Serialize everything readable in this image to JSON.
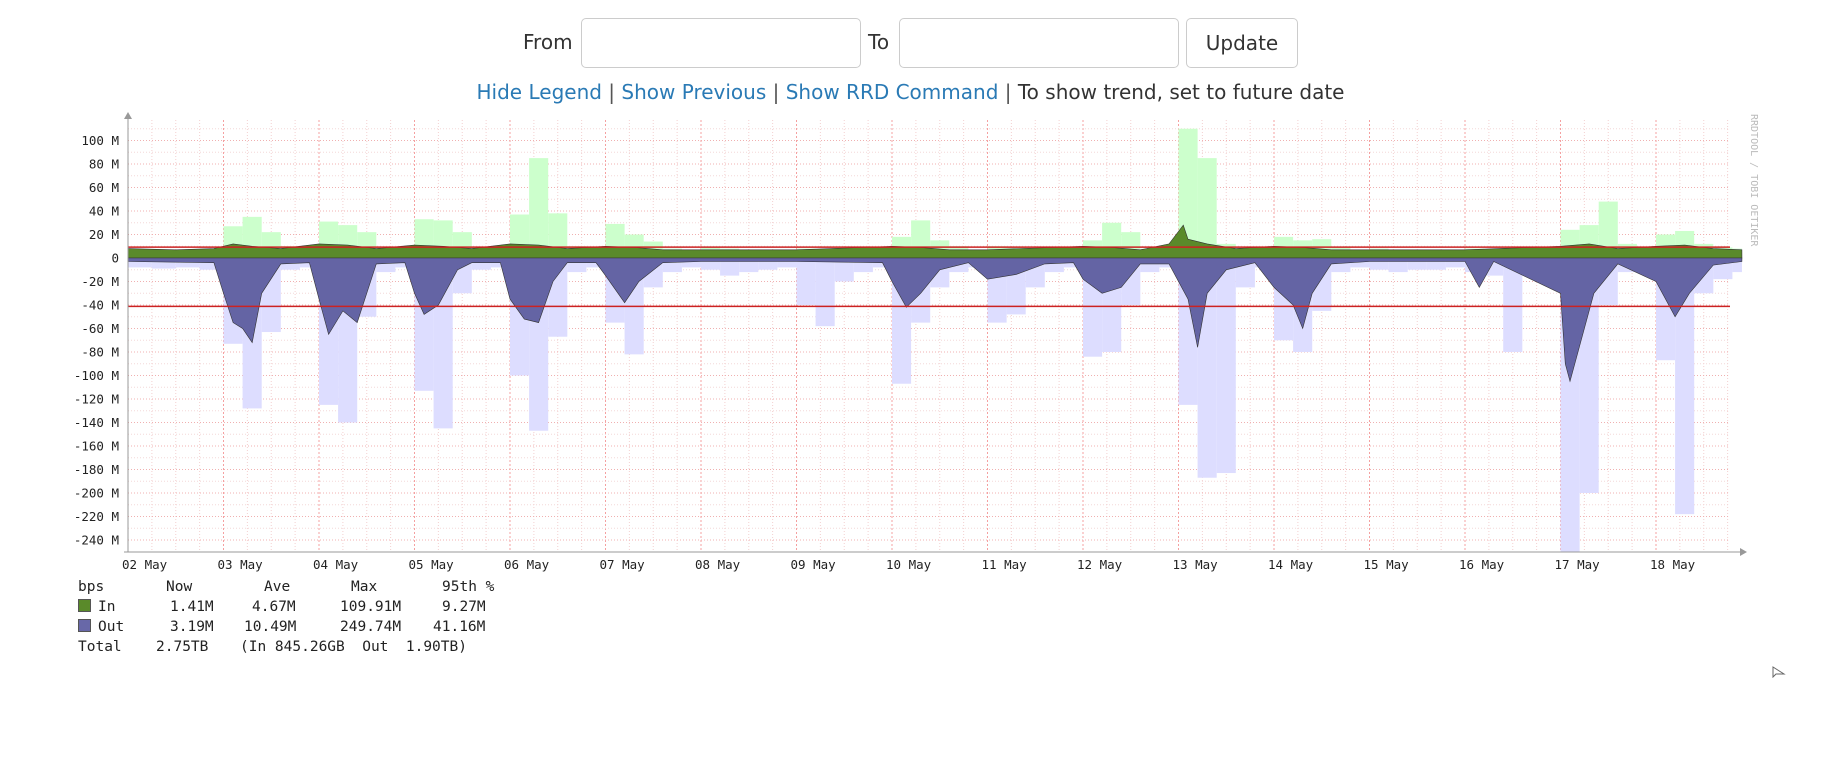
{
  "form": {
    "from_label": "From",
    "from_value": "",
    "to_label": "To",
    "to_value": "",
    "update_label": "Update"
  },
  "links": {
    "hide_legend": "Hide Legend",
    "show_previous": "Show Previous",
    "show_rrd": "Show RRD Command",
    "trend_note": "To show trend, set to future date",
    "separator": "|"
  },
  "watermark": "RRDTOOL / TOBI OETIKER",
  "legend": {
    "unit": "bps",
    "headers": [
      "Now",
      "Ave",
      "Max",
      "95th %"
    ],
    "rows": [
      {
        "name": "In",
        "color": "#5a8a2a",
        "now": "1.41M",
        "ave": "4.67M",
        "max": "109.91M",
        "p95": "9.27M"
      },
      {
        "name": "Out",
        "color": "#6868a8",
        "now": "3.19M",
        "ave": "10.49M",
        "max": "249.74M",
        "p95": "41.16M"
      }
    ],
    "total": {
      "label": "Total",
      "value": "2.75TB",
      "detail": "(In 845.26GB  Out  1.90TB)"
    }
  },
  "colors": {
    "in_fill": "#5a8a2a",
    "in_max_fill": "#ccffcc",
    "out_fill": "#6464a4",
    "out_max_fill": "#ddddff",
    "p95_line": "#cc2222",
    "link": "#2a7ab5"
  },
  "chart_data": {
    "type": "area",
    "unit": "bps",
    "y_tick_labels": [
      "100 M",
      "80 M",
      "60 M",
      "40 M",
      "20 M",
      "0",
      "-20 M",
      "-40 M",
      "-60 M",
      "-80 M",
      "-100 M",
      "-120 M",
      "-140 M",
      "-160 M",
      "-180 M",
      "-200 M",
      "-220 M",
      "-240 M"
    ],
    "y_ticks": [
      100,
      80,
      60,
      40,
      20,
      0,
      -20,
      -40,
      -60,
      -80,
      -100,
      -120,
      -140,
      -160,
      -180,
      -200,
      -220,
      -240
    ],
    "x_tick_labels": [
      "02 May",
      "03 May",
      "04 May",
      "05 May",
      "06 May",
      "07 May",
      "08 May",
      "09 May",
      "10 May",
      "11 May",
      "12 May",
      "13 May",
      "14 May",
      "15 May",
      "16 May",
      "17 May",
      "18 May"
    ],
    "x_range_days": [
      0,
      16.9
    ],
    "y_range": [
      -250,
      110
    ],
    "in_95th": 9.27,
    "out_95th": -41.16,
    "series": [
      {
        "name": "In",
        "kind": "max_bars",
        "points": [
          [
            0.0,
            6
          ],
          [
            0.25,
            7
          ],
          [
            0.5,
            6
          ],
          [
            0.75,
            8
          ],
          [
            1.0,
            27
          ],
          [
            1.2,
            35
          ],
          [
            1.4,
            22
          ],
          [
            1.6,
            10
          ],
          [
            1.8,
            6
          ],
          [
            2.0,
            31
          ],
          [
            2.2,
            28
          ],
          [
            2.4,
            22
          ],
          [
            2.6,
            9
          ],
          [
            2.8,
            6
          ],
          [
            3.0,
            33
          ],
          [
            3.2,
            32
          ],
          [
            3.4,
            22
          ],
          [
            3.6,
            9
          ],
          [
            3.8,
            6
          ],
          [
            4.0,
            37
          ],
          [
            4.2,
            85
          ],
          [
            4.4,
            38
          ],
          [
            4.6,
            10
          ],
          [
            4.8,
            6
          ],
          [
            5.0,
            29
          ],
          [
            5.2,
            20
          ],
          [
            5.4,
            14
          ],
          [
            5.6,
            8
          ],
          [
            5.8,
            6
          ],
          [
            6.0,
            9
          ],
          [
            6.2,
            8
          ],
          [
            6.4,
            7
          ],
          [
            6.6,
            7
          ],
          [
            6.8,
            6
          ],
          [
            7.0,
            8
          ],
          [
            7.2,
            7
          ],
          [
            7.4,
            7
          ],
          [
            7.6,
            7
          ],
          [
            7.8,
            6
          ],
          [
            8.0,
            18
          ],
          [
            8.2,
            32
          ],
          [
            8.4,
            15
          ],
          [
            8.6,
            10
          ],
          [
            8.8,
            6
          ],
          [
            9.0,
            10
          ],
          [
            9.2,
            9
          ],
          [
            9.4,
            8
          ],
          [
            9.6,
            7
          ],
          [
            9.8,
            6
          ],
          [
            10.0,
            15
          ],
          [
            10.2,
            30
          ],
          [
            10.4,
            22
          ],
          [
            10.6,
            8
          ],
          [
            10.8,
            6
          ],
          [
            11.0,
            110
          ],
          [
            11.2,
            85
          ],
          [
            11.4,
            12
          ],
          [
            11.6,
            8
          ],
          [
            11.8,
            6
          ],
          [
            12.0,
            18
          ],
          [
            12.2,
            15
          ],
          [
            12.4,
            16
          ],
          [
            12.6,
            9
          ],
          [
            12.8,
            6
          ],
          [
            13.0,
            8
          ],
          [
            13.2,
            7
          ],
          [
            13.4,
            7
          ],
          [
            13.6,
            7
          ],
          [
            13.8,
            6
          ],
          [
            14.0,
            8
          ],
          [
            14.2,
            7
          ],
          [
            14.4,
            7
          ],
          [
            14.6,
            7
          ],
          [
            14.8,
            6
          ],
          [
            15.0,
            24
          ],
          [
            15.2,
            28
          ],
          [
            15.4,
            48
          ],
          [
            15.6,
            12
          ],
          [
            15.8,
            6
          ],
          [
            16.0,
            20
          ],
          [
            16.2,
            23
          ],
          [
            16.4,
            12
          ],
          [
            16.6,
            9
          ],
          [
            16.8,
            8
          ]
        ]
      },
      {
        "name": "Out",
        "kind": "max_bars",
        "points": [
          [
            0.0,
            -8
          ],
          [
            0.25,
            -9
          ],
          [
            0.5,
            -8
          ],
          [
            0.75,
            -10
          ],
          [
            1.0,
            -73
          ],
          [
            1.2,
            -128
          ],
          [
            1.4,
            -63
          ],
          [
            1.6,
            -10
          ],
          [
            1.8,
            -8
          ],
          [
            2.0,
            -125
          ],
          [
            2.2,
            -140
          ],
          [
            2.4,
            -50
          ],
          [
            2.6,
            -12
          ],
          [
            2.8,
            -8
          ],
          [
            3.0,
            -113
          ],
          [
            3.2,
            -145
          ],
          [
            3.4,
            -30
          ],
          [
            3.6,
            -10
          ],
          [
            3.8,
            -8
          ],
          [
            4.0,
            -100
          ],
          [
            4.2,
            -147
          ],
          [
            4.4,
            -67
          ],
          [
            4.6,
            -12
          ],
          [
            4.8,
            -8
          ],
          [
            5.0,
            -55
          ],
          [
            5.2,
            -82
          ],
          [
            5.4,
            -25
          ],
          [
            5.6,
            -12
          ],
          [
            5.8,
            -8
          ],
          [
            6.0,
            -10
          ],
          [
            6.2,
            -15
          ],
          [
            6.4,
            -12
          ],
          [
            6.6,
            -10
          ],
          [
            6.8,
            -8
          ],
          [
            7.0,
            -40
          ],
          [
            7.2,
            -58
          ],
          [
            7.4,
            -20
          ],
          [
            7.6,
            -12
          ],
          [
            7.8,
            -8
          ],
          [
            8.0,
            -107
          ],
          [
            8.2,
            -55
          ],
          [
            8.4,
            -25
          ],
          [
            8.6,
            -12
          ],
          [
            8.8,
            -8
          ],
          [
            9.0,
            -55
          ],
          [
            9.2,
            -48
          ],
          [
            9.4,
            -25
          ],
          [
            9.6,
            -12
          ],
          [
            9.8,
            -8
          ],
          [
            10.0,
            -84
          ],
          [
            10.2,
            -80
          ],
          [
            10.4,
            -40
          ],
          [
            10.6,
            -12
          ],
          [
            10.8,
            -8
          ],
          [
            11.0,
            -125
          ],
          [
            11.2,
            -187
          ],
          [
            11.4,
            -183
          ],
          [
            11.6,
            -25
          ],
          [
            11.8,
            -8
          ],
          [
            12.0,
            -70
          ],
          [
            12.2,
            -80
          ],
          [
            12.4,
            -45
          ],
          [
            12.6,
            -12
          ],
          [
            12.8,
            -8
          ],
          [
            13.0,
            -10
          ],
          [
            13.2,
            -12
          ],
          [
            13.4,
            -10
          ],
          [
            13.6,
            -10
          ],
          [
            13.8,
            -8
          ],
          [
            14.0,
            -12
          ],
          [
            14.2,
            -15
          ],
          [
            14.4,
            -80
          ],
          [
            14.6,
            -12
          ],
          [
            14.8,
            -8
          ],
          [
            15.0,
            -250
          ],
          [
            15.2,
            -200
          ],
          [
            15.4,
            -40
          ],
          [
            15.6,
            -12
          ],
          [
            15.8,
            -8
          ],
          [
            16.0,
            -87
          ],
          [
            16.2,
            -218
          ],
          [
            16.4,
            -30
          ],
          [
            16.6,
            -18
          ],
          [
            16.8,
            -12
          ]
        ]
      }
    ],
    "averages": {
      "in": [
        [
          0.0,
          8
        ],
        [
          0.5,
          7
        ],
        [
          0.9,
          8
        ],
        [
          1.1,
          12
        ],
        [
          1.3,
          10
        ],
        [
          1.6,
          8
        ],
        [
          2.0,
          12
        ],
        [
          2.3,
          11
        ],
        [
          2.6,
          8
        ],
        [
          3.0,
          11
        ],
        [
          3.3,
          10
        ],
        [
          3.6,
          8
        ],
        [
          4.0,
          12
        ],
        [
          4.3,
          11
        ],
        [
          4.6,
          8
        ],
        [
          5.0,
          10
        ],
        [
          5.3,
          9
        ],
        [
          5.6,
          7
        ],
        [
          6.0,
          7
        ],
        [
          7.0,
          7
        ],
        [
          8.0,
          10
        ],
        [
          8.3,
          9
        ],
        [
          8.6,
          7
        ],
        [
          9.0,
          7
        ],
        [
          10.0,
          10
        ],
        [
          10.3,
          9
        ],
        [
          10.6,
          7
        ],
        [
          10.9,
          12
        ],
        [
          11.05,
          28
        ],
        [
          11.1,
          16
        ],
        [
          11.3,
          12
        ],
        [
          11.6,
          8
        ],
        [
          12.0,
          10
        ],
        [
          12.3,
          9
        ],
        [
          12.6,
          7
        ],
        [
          13.0,
          7
        ],
        [
          14.0,
          7
        ],
        [
          15.0,
          10
        ],
        [
          15.3,
          12
        ],
        [
          15.6,
          8
        ],
        [
          16.0,
          10
        ],
        [
          16.3,
          11
        ],
        [
          16.6,
          8
        ],
        [
          16.9,
          7
        ]
      ],
      "out": [
        [
          0.0,
          -3
        ],
        [
          0.9,
          -4
        ],
        [
          1.0,
          -30
        ],
        [
          1.1,
          -55
        ],
        [
          1.2,
          -60
        ],
        [
          1.3,
          -72
        ],
        [
          1.4,
          -30
        ],
        [
          1.6,
          -5
        ],
        [
          1.9,
          -4
        ],
        [
          2.0,
          -35
        ],
        [
          2.1,
          -65
        ],
        [
          2.25,
          -45
        ],
        [
          2.4,
          -55
        ],
        [
          2.6,
          -5
        ],
        [
          2.9,
          -4
        ],
        [
          3.0,
          -30
        ],
        [
          3.1,
          -48
        ],
        [
          3.25,
          -40
        ],
        [
          3.45,
          -10
        ],
        [
          3.6,
          -4
        ],
        [
          3.9,
          -4
        ],
        [
          4.0,
          -35
        ],
        [
          4.15,
          -52
        ],
        [
          4.3,
          -55
        ],
        [
          4.45,
          -20
        ],
        [
          4.6,
          -4
        ],
        [
          4.9,
          -4
        ],
        [
          5.0,
          -15
        ],
        [
          5.2,
          -38
        ],
        [
          5.35,
          -20
        ],
        [
          5.6,
          -4
        ],
        [
          6.0,
          -3
        ],
        [
          7.0,
          -3
        ],
        [
          7.9,
          -4
        ],
        [
          8.0,
          -20
        ],
        [
          8.15,
          -42
        ],
        [
          8.3,
          -30
        ],
        [
          8.5,
          -10
        ],
        [
          8.8,
          -4
        ],
        [
          9.0,
          -18
        ],
        [
          9.3,
          -14
        ],
        [
          9.6,
          -5
        ],
        [
          9.9,
          -4
        ],
        [
          10.0,
          -18
        ],
        [
          10.2,
          -30
        ],
        [
          10.4,
          -25
        ],
        [
          10.6,
          -5
        ],
        [
          10.9,
          -5
        ],
        [
          11.0,
          -20
        ],
        [
          11.1,
          -35
        ],
        [
          11.2,
          -76
        ],
        [
          11.3,
          -30
        ],
        [
          11.5,
          -10
        ],
        [
          11.8,
          -4
        ],
        [
          12.0,
          -25
        ],
        [
          12.2,
          -40
        ],
        [
          12.3,
          -60
        ],
        [
          12.4,
          -30
        ],
        [
          12.6,
          -5
        ],
        [
          13.0,
          -3
        ],
        [
          14.0,
          -3
        ],
        [
          14.15,
          -25
        ],
        [
          14.3,
          -3
        ],
        [
          15.0,
          -30
        ],
        [
          15.05,
          -90
        ],
        [
          15.1,
          -105
        ],
        [
          15.2,
          -75
        ],
        [
          15.35,
          -30
        ],
        [
          15.6,
          -5
        ],
        [
          16.0,
          -20
        ],
        [
          16.2,
          -50
        ],
        [
          16.35,
          -30
        ],
        [
          16.6,
          -6
        ],
        [
          16.9,
          -3
        ]
      ]
    }
  }
}
